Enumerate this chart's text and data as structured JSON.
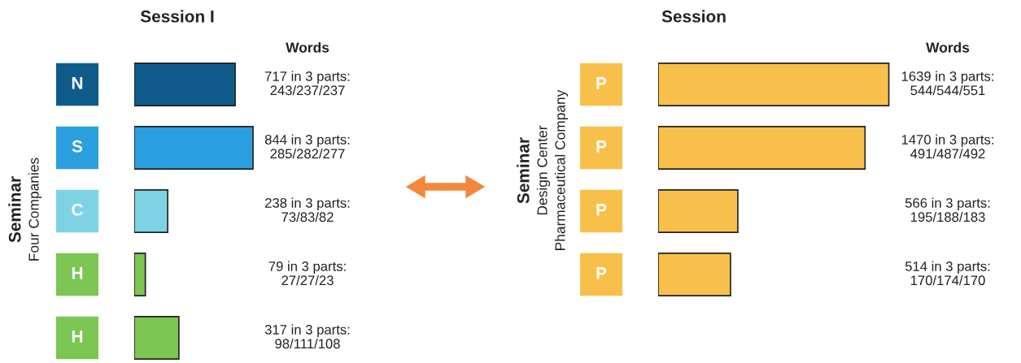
{
  "chart_data": [
    {
      "type": "bar",
      "orientation": "horizontal",
      "title": "Session I",
      "ylabel": "Seminar\nFour Companies",
      "annotations": [
        "Words"
      ],
      "legend": false,
      "categories": [
        "N",
        "S",
        "C",
        "H",
        "H"
      ],
      "values": [
        717,
        844,
        238,
        79,
        317
      ],
      "colors": [
        "#0f5c8c",
        "#2a9fe0",
        "#7dd3e3",
        "#7cc653",
        "#7cc653"
      ],
      "value_labels": [
        "717 in 3 parts:\n243/237/237",
        "844 in 3 parts:\n285/282/277",
        "238 in 3 parts:\n73/83/82",
        "79 in 3 parts:\n27/27/23",
        "317 in 3 parts:\n98/111/108"
      ]
    },
    {
      "type": "bar",
      "orientation": "horizontal",
      "title": "Session",
      "ylabel": "Seminar\nDesign Center\nPharmaceutical Company",
      "annotations": [
        "Words"
      ],
      "legend": false,
      "categories": [
        "P",
        "P",
        "P",
        "P"
      ],
      "values": [
        1639,
        1470,
        566,
        514
      ],
      "colors": [
        "#f8c04a",
        "#f8c04a",
        "#f8c04a",
        "#f8c04a"
      ],
      "value_labels": [
        "1639 in 3 parts:\n544/544/551",
        "1470 in 3 parts:\n491/487/492",
        "566 in 3 parts:\n195/188/183",
        "514 in 3 parts:\n170/174/170"
      ]
    }
  ]
}
